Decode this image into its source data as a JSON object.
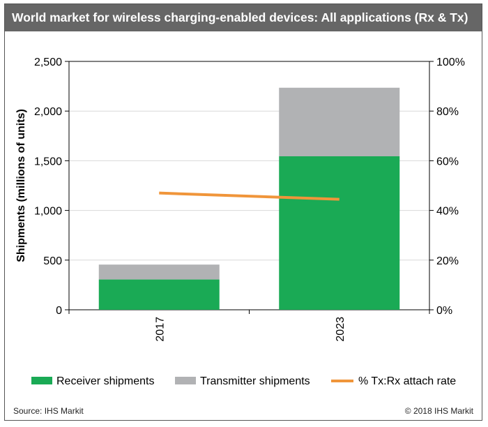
{
  "header": {
    "title": "World market for wireless charging-enabled devices: All applications (Rx & Tx)"
  },
  "colors": {
    "receiver": "#1aaa55",
    "transmitter": "#b1b2b4",
    "attach_rate": "#f0953a",
    "header_bg": "#666666"
  },
  "chart_data": {
    "type": "bar",
    "stacked": true,
    "categories": [
      "2017",
      "2023"
    ],
    "series": [
      {
        "name": "Receiver shipments",
        "values": [
          305,
          1545
        ],
        "type": "bar",
        "axis": "left"
      },
      {
        "name": "Transmitter shipments",
        "values": [
          150,
          690
        ],
        "type": "bar",
        "axis": "left"
      },
      {
        "name": "% Tx:Rx attach rate",
        "values": [
          47,
          44.5
        ],
        "type": "line",
        "axis": "right"
      }
    ],
    "ylabel": "Shipments (millions of units)",
    "ylim": [
      0,
      2500
    ],
    "yticks": [
      "0",
      "500",
      "1,000",
      "1,500",
      "2,000",
      "2,500"
    ],
    "y2lim": [
      0,
      100
    ],
    "y2ticks": [
      "0%",
      "20%",
      "40%",
      "60%",
      "80%",
      "100%"
    ],
    "grid": true,
    "legend_position": "bottom"
  },
  "footer": {
    "source": "Source: IHS Markit",
    "copyright": "© 2018 IHS Markit"
  }
}
